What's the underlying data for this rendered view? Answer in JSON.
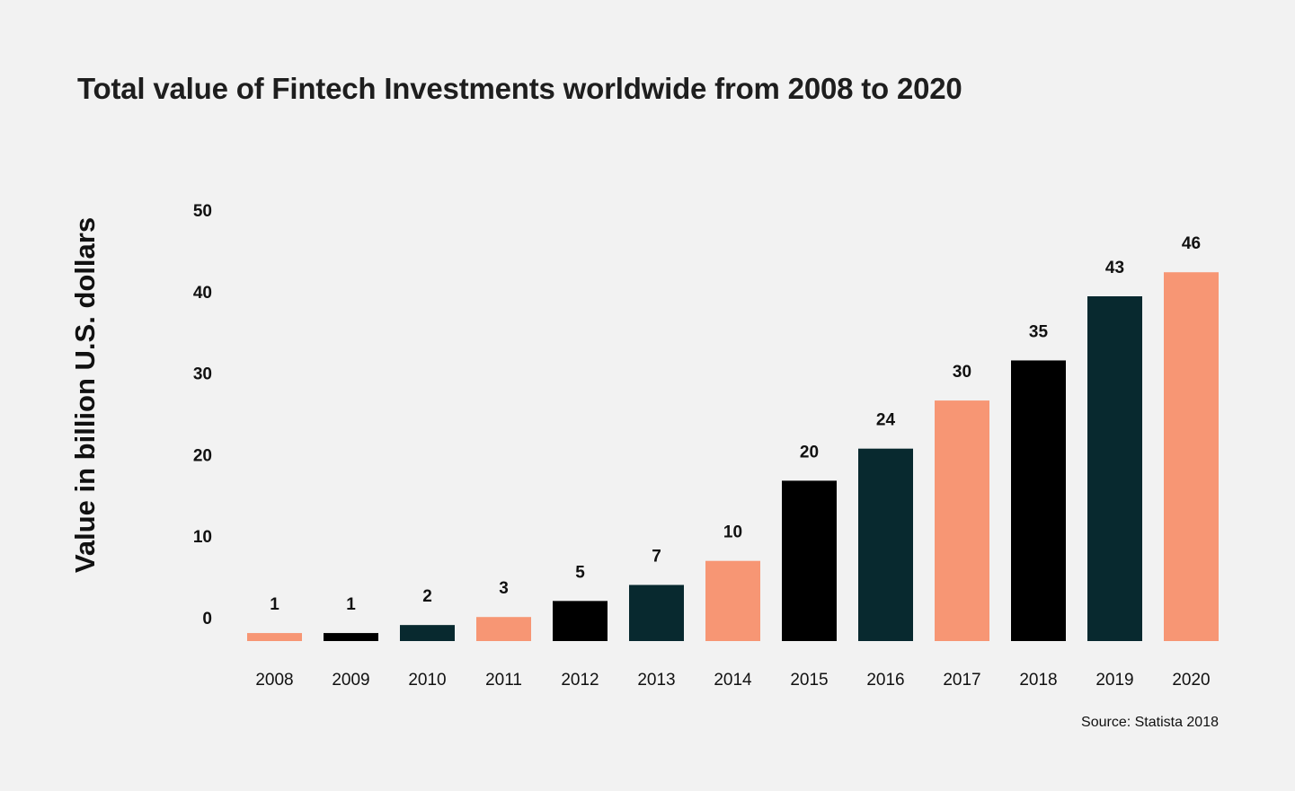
{
  "chart_data": {
    "type": "bar",
    "title": "Total value of Fintech Investments worldwide from 2008 to 2020",
    "xlabel": "",
    "ylabel": "Value in billion U.S. dollars",
    "ylim": [
      0,
      50
    ],
    "yticks": [
      "0",
      "10",
      "20",
      "30",
      "40",
      "50"
    ],
    "grid": false,
    "categories": [
      "2008",
      "2009",
      "2010",
      "2011",
      "2012",
      "2013",
      "2014",
      "2015",
      "2016",
      "2017",
      "2018",
      "2019",
      "2020"
    ],
    "values": [
      1,
      1,
      2,
      3,
      5,
      7,
      10,
      20,
      24,
      30,
      35,
      43,
      46
    ],
    "bar_colors": [
      "#f79674",
      "#000000",
      "#08292f",
      "#f79674",
      "#000000",
      "#08292f",
      "#f79674",
      "#000000",
      "#08292f",
      "#f79674",
      "#000000",
      "#08292f",
      "#f79674"
    ],
    "source": "Source: Statista 2018"
  }
}
